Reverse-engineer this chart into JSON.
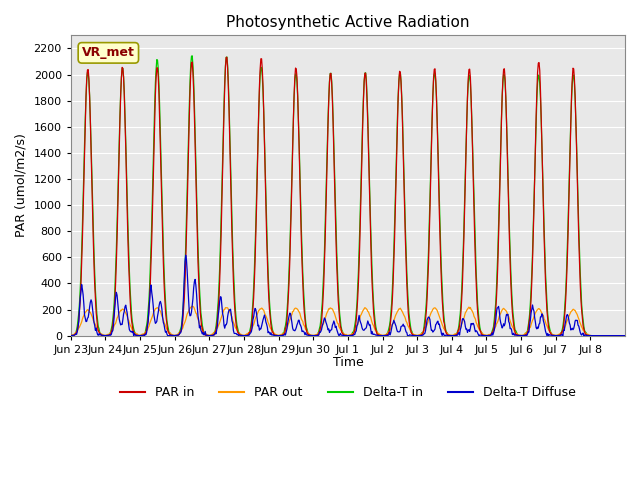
{
  "title": "Photosynthetic Active Radiation",
  "ylabel": "PAR (umol/m2/s)",
  "xlabel": "Time",
  "ylim": [
    0,
    2300
  ],
  "legend_label": "VR_met",
  "tick_labels": [
    "Jun 23",
    "Jun 24",
    "Jun 25",
    "Jun 26",
    "Jun 27",
    "Jun 28",
    "Jun 29",
    "Jun 30",
    "Jul 1",
    "Jul 2",
    "Jul 3",
    "Jul 4",
    "Jul 5",
    "Jul 6",
    "Jul 7",
    "Jul 8"
  ],
  "series_colors": {
    "PAR in": "#cc0000",
    "PAR out": "#ff9900",
    "Delta-T in": "#00cc00",
    "Delta-T Diffuse": "#0000cc"
  },
  "bg_color": "#e8e8e8",
  "grid_color": "#ffffff",
  "n_days": 16,
  "samples_per_day": 48
}
